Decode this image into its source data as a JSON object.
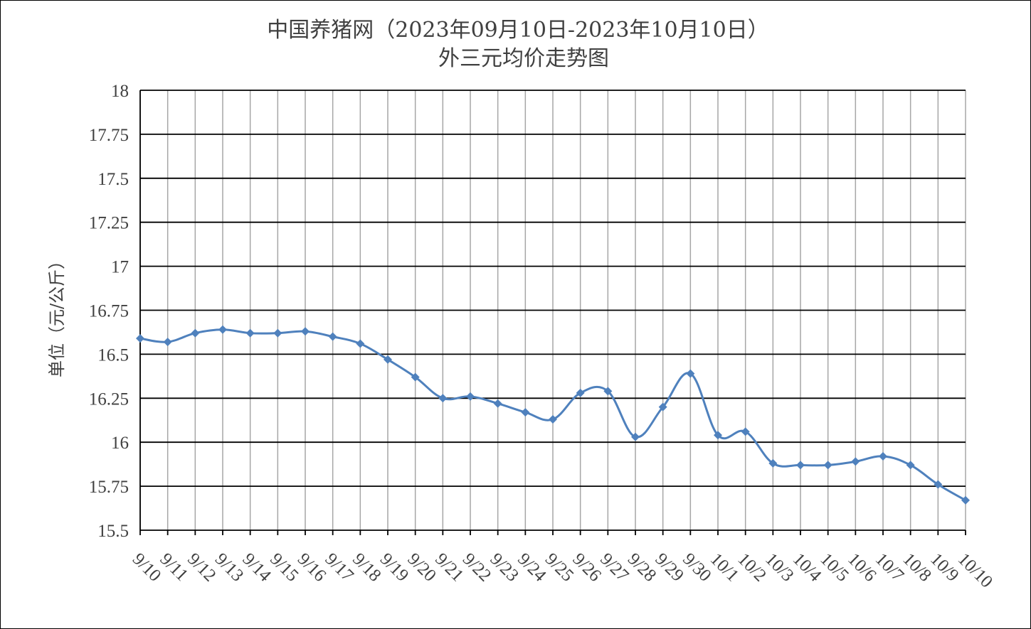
{
  "chart_data": {
    "type": "line",
    "title_line1": "中国养猪网（2023年09月10日-2023年10月10日）",
    "title_line2": "外三元均价走势图",
    "ylabel": "单位（元/公斤）",
    "xlabel": "",
    "ylim": [
      15.5,
      18
    ],
    "ytick_values": [
      15.5,
      15.75,
      16,
      16.25,
      16.5,
      16.75,
      17,
      17.25,
      17.5,
      17.75,
      18
    ],
    "ytick_labels": [
      "15.5",
      "15.75",
      "16",
      "16.25",
      "16.5",
      "16.75",
      "17",
      "17.25",
      "17.5",
      "17.75",
      "18"
    ],
    "grid": true,
    "smooth": true,
    "line_color": "#4f81bd",
    "marker": "diamond",
    "categories": [
      "9/10",
      "9/11",
      "9/12",
      "9/13",
      "9/14",
      "9/15",
      "9/16",
      "9/17",
      "9/18",
      "9/19",
      "9/20",
      "9/21",
      "9/22",
      "9/23",
      "9/24",
      "9/25",
      "9/26",
      "9/27",
      "9/28",
      "9/29",
      "9/30",
      "10/1",
      "10/2",
      "10/3",
      "10/4",
      "10/5",
      "10/6",
      "10/7",
      "10/8",
      "10/9",
      "10/10"
    ],
    "series": [
      {
        "values": [
          16.59,
          16.57,
          16.62,
          16.64,
          16.62,
          16.62,
          16.63,
          16.6,
          16.56,
          16.47,
          16.37,
          16.25,
          16.26,
          16.22,
          16.17,
          16.13,
          16.28,
          16.29,
          16.03,
          16.2,
          16.39,
          16.04,
          16.06,
          15.88,
          15.87,
          15.87,
          15.89,
          15.92,
          15.87,
          15.76,
          15.67
        ]
      }
    ]
  }
}
